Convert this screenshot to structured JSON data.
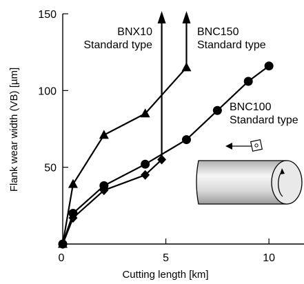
{
  "chart_data": {
    "type": "line",
    "xlabel": "Cutting length [km]",
    "ylabel": "Flank wear width (VB) [µm]",
    "xlim": [
      0,
      11.7
    ],
    "ylim": [
      0,
      150
    ],
    "x_ticks": [
      0,
      5,
      10
    ],
    "y_ticks": [
      50,
      100,
      150
    ],
    "grid": false,
    "legend": "none",
    "series": [
      {
        "name": "BNX10",
        "annotation": [
          "BNX10",
          "Standard type"
        ],
        "marker": "diamond",
        "x": [
          0,
          0.5,
          2,
          4,
          4.8
        ],
        "y": [
          0,
          17,
          35,
          45,
          55
        ],
        "failure": {
          "x": 4.8,
          "y_end": 150,
          "arrow": true
        }
      },
      {
        "name": "BNC150",
        "annotation": [
          "BNC150",
          "Standard type"
        ],
        "marker": "triangle",
        "x": [
          0,
          0.5,
          2,
          4,
          6
        ],
        "y": [
          0,
          39,
          71,
          85,
          115
        ],
        "failure": {
          "x": 6,
          "y_end": 150,
          "arrow": true
        }
      },
      {
        "name": "BNC100",
        "annotation": [
          "BNC100",
          "Standard type"
        ],
        "marker": "circle",
        "x": [
          0,
          0.5,
          2,
          4,
          6,
          7.5,
          9,
          10
        ],
        "y": [
          0,
          20,
          38,
          52,
          68,
          87,
          106,
          116
        ]
      }
    ],
    "inset": "workpiece-cylinder-icon"
  },
  "colors": {
    "line": "#000000",
    "cylinder_light": "#f4f4f4",
    "cylinder_dark": "#a8a8a8"
  }
}
